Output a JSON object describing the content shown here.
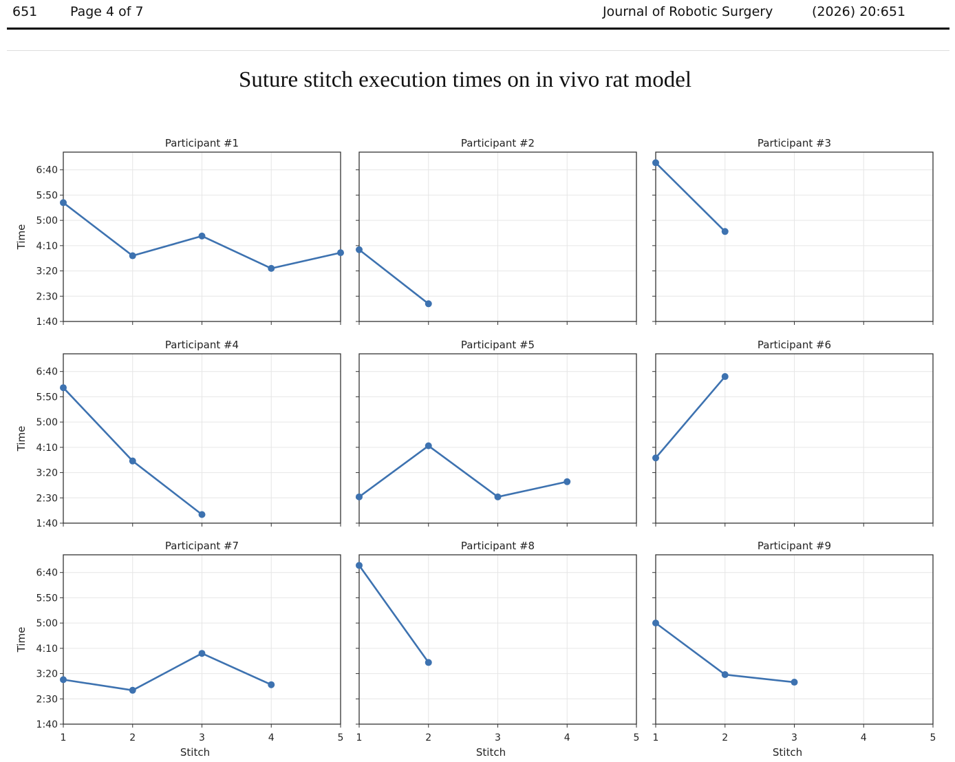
{
  "header": {
    "page_number": "651",
    "page_label": "Page 4 of 7",
    "journal": "Journal of Robotic Surgery",
    "citation": "(2026) 20:651"
  },
  "figure": {
    "title": "Suture stitch execution times on in vivo rat model"
  },
  "colors": {
    "series": "#3d72b0",
    "grid": "#e6e6e6",
    "axis": "#333333"
  },
  "chart_data": {
    "type": "line",
    "layout": "3x3 small multiples, shared axes",
    "xlabel": "Stitch",
    "ylabel": "Time",
    "x_ticks": [
      1,
      2,
      3,
      4,
      5
    ],
    "y_ticks": [
      "1:40",
      "2:30",
      "3:20",
      "4:10",
      "5:00",
      "5:50",
      "6:40"
    ],
    "y_tick_seconds": [
      100,
      150,
      200,
      250,
      300,
      350,
      400
    ],
    "xlim": [
      1,
      5
    ],
    "ylim_seconds": [
      100,
      435
    ],
    "grid": true,
    "panels": [
      {
        "title": "Participant #1",
        "x": [
          1,
          2,
          3,
          4,
          5
        ],
        "y_seconds": [
          335,
          230,
          269,
          205,
          236
        ]
      },
      {
        "title": "Participant #2",
        "x": [
          1,
          2
        ],
        "y_seconds": [
          242,
          135
        ]
      },
      {
        "title": "Participant #3",
        "x": [
          1,
          2
        ],
        "y_seconds": [
          414,
          278
        ]
      },
      {
        "title": "Participant #4",
        "x": [
          1,
          2,
          3
        ],
        "y_seconds": [
          368,
          223,
          117
        ]
      },
      {
        "title": "Participant #5",
        "x": [
          1,
          2,
          3,
          4
        ],
        "y_seconds": [
          152,
          253,
          152,
          182
        ]
      },
      {
        "title": "Participant #6",
        "x": [
          1,
          2
        ],
        "y_seconds": [
          229,
          390
        ]
      },
      {
        "title": "Participant #7",
        "x": [
          1,
          2,
          3,
          4
        ],
        "y_seconds": [
          188,
          167,
          240,
          178
        ]
      },
      {
        "title": "Participant #8",
        "x": [
          1,
          2
        ],
        "y_seconds": [
          414,
          222
        ]
      },
      {
        "title": "Participant #9",
        "x": [
          1,
          2,
          3
        ],
        "y_seconds": [
          300,
          198,
          183
        ]
      }
    ]
  }
}
